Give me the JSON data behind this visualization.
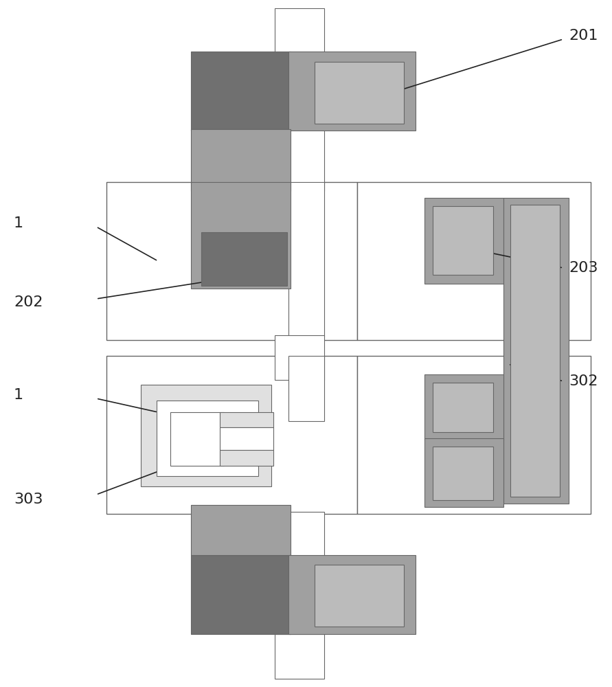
{
  "fig_width": 8.91,
  "fig_height": 10.0,
  "bg_color": "#ffffff",
  "colors": {
    "dark_gray": "#707070",
    "mid_gray": "#a0a0a0",
    "light_gray": "#bbbbbb",
    "lighter_gray": "#cccccc",
    "very_light_gray": "#e0e0e0",
    "white": "#ffffff",
    "border": "#888888",
    "border_dark": "#666666",
    "line_color": "#222222"
  }
}
